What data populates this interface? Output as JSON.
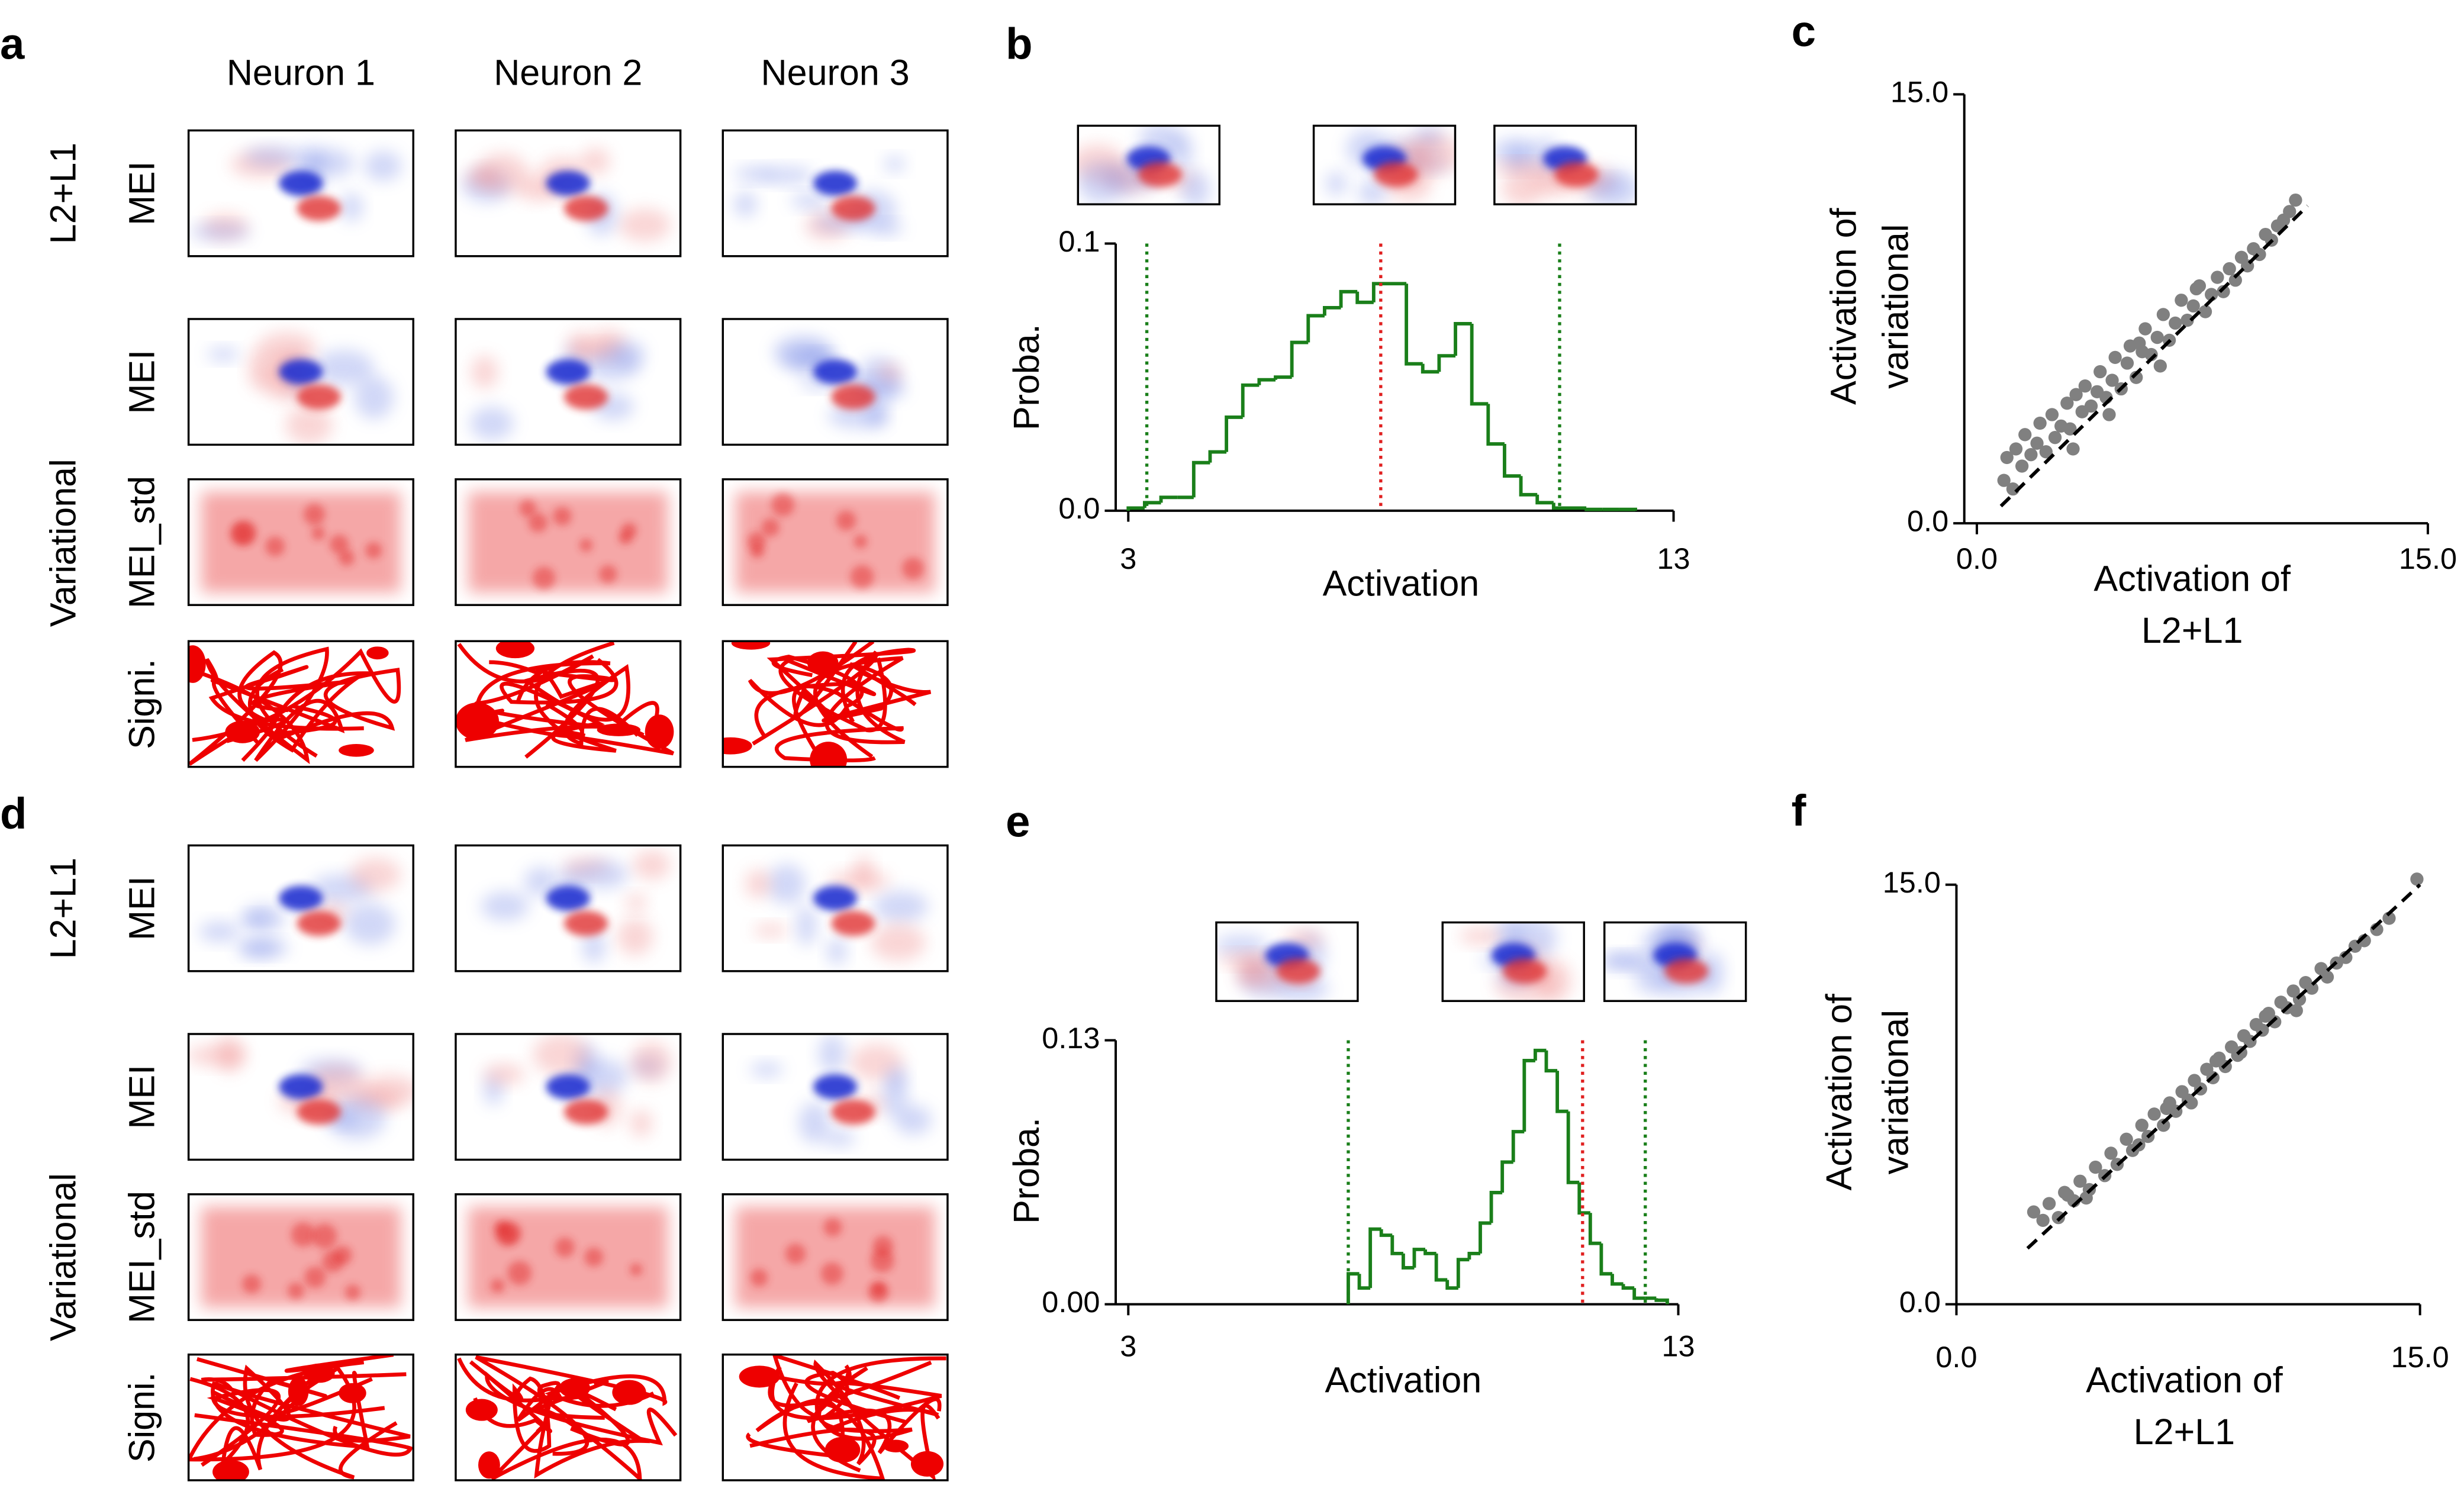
{
  "panel_labels": [
    "a",
    "b",
    "c",
    "d",
    "e",
    "f"
  ],
  "image_grids": [
    {
      "columns": [
        "Neuron 1",
        "Neuron 2",
        "Neuron 3"
      ],
      "groups": [
        "L2+L1",
        "Variational"
      ],
      "rows": [
        "MEI",
        "MEI",
        "MEI_std",
        "Signi."
      ]
    },
    {
      "groups": [
        "L2+L1",
        "Variational"
      ],
      "rows": [
        "MEI",
        "MEI",
        "MEI_std",
        "Signi."
      ]
    }
  ],
  "chart_data": [
    {
      "type": "histogram",
      "xlabel": "Activation",
      "ylabel": "Proba.",
      "color": "#1a7f1a",
      "bins": [
        3.0,
        3.3,
        3.6,
        3.9,
        4.2,
        4.5,
        4.8,
        5.1,
        5.4,
        5.7,
        6.0,
        6.3,
        6.6,
        6.9,
        7.2,
        7.5,
        7.8,
        8.1,
        8.4,
        8.7,
        9.0,
        9.3,
        9.6,
        9.9,
        10.2,
        10.5,
        10.8,
        11.1,
        11.4,
        11.7,
        12.0,
        12.3
      ],
      "values": [
        0.001,
        0.003,
        0.005,
        0.005,
        0.018,
        0.022,
        0.035,
        0.047,
        0.049,
        0.05,
        0.063,
        0.073,
        0.076,
        0.082,
        0.078,
        0.085,
        0.085,
        0.055,
        0.052,
        0.058,
        0.07,
        0.04,
        0.025,
        0.013,
        0.006,
        0.003,
        0.001,
        0.001,
        0.0005,
        0.0005,
        0.0005
      ],
      "vlines": [
        {
          "value": 3.34,
          "color": "#1a7f1a"
        },
        {
          "value": 7.63,
          "color": "#e02020"
        },
        {
          "value": 10.91,
          "color": "#1a7f1a"
        }
      ],
      "xlim": [
        3,
        13
      ],
      "xticks": [
        3,
        13
      ],
      "ylim": [
        0,
        0.1
      ],
      "yticks": [
        {
          "value": 0,
          "label": "0.0"
        },
        0.1
      ]
    },
    {
      "type": "scatter",
      "xlabel": [
        "Activation of",
        "L2+L1"
      ],
      "ylabel": [
        "Activation of",
        "variational"
      ],
      "color": "#808080",
      "x": [
        0.9,
        1.0,
        1.2,
        1.3,
        1.5,
        1.6,
        1.8,
        2.0,
        2.1,
        2.3,
        2.5,
        2.6,
        2.8,
        3.0,
        3.1,
        3.3,
        3.5,
        3.6,
        3.8,
        4.0,
        4.1,
        4.3,
        4.5,
        4.6,
        4.8,
        5.0,
        5.1,
        5.3,
        5.5,
        5.6,
        5.8,
        6.0,
        6.2,
        6.4,
        6.6,
        6.8,
        7.0,
        7.2,
        7.4,
        7.6,
        7.8,
        8.0,
        8.2,
        8.4,
        8.6,
        8.8,
        9.0,
        9.2,
        9.4,
        9.6,
        9.8,
        10.0,
        10.2,
        10.4,
        10.6,
        3.2,
        4.4,
        5.4,
        6.1,
        7.3
      ],
      "y": [
        1.5,
        2.3,
        1.2,
        2.6,
        2.0,
        3.1,
        2.4,
        2.8,
        3.5,
        2.5,
        3.8,
        3.0,
        3.4,
        4.2,
        3.3,
        4.5,
        3.9,
        4.8,
        4.1,
        4.6,
        5.3,
        4.4,
        5.0,
        5.8,
        4.7,
        5.6,
        6.2,
        5.1,
        6.0,
        6.8,
        5.9,
        6.5,
        7.3,
        6.4,
        7.0,
        7.8,
        7.1,
        7.6,
        8.3,
        7.4,
        8.0,
        8.6,
        8.1,
        8.9,
        8.5,
        9.3,
        9.0,
        9.6,
        9.4,
        10.1,
        9.9,
        10.4,
        10.6,
        10.9,
        11.3,
        2.6,
        3.8,
        6.3,
        5.5,
        8.2
      ],
      "fit": {
        "x": [
          0.8,
          11.0
        ],
        "y": [
          0.6,
          11.1
        ]
      },
      "xlim": [
        0,
        15
      ],
      "xticks": [
        {
          "value": 0,
          "label": "0.0"
        },
        {
          "value": 15,
          "label": "15.0"
        }
      ],
      "ylim": [
        0,
        15
      ],
      "yticks": [
        {
          "value": 0,
          "label": "0.0"
        },
        {
          "value": 15,
          "label": "15.0"
        }
      ]
    },
    {
      "type": "histogram",
      "xlabel": "Activation",
      "ylabel": "Proba.",
      "color": "#1a7f1a",
      "bins": [
        7.0,
        7.2,
        7.4,
        7.6,
        7.8,
        8.0,
        8.2,
        8.4,
        8.6,
        8.8,
        9.0,
        9.2,
        9.4,
        9.6,
        9.8,
        10.0,
        10.2,
        10.4,
        10.6,
        10.8,
        11.0,
        11.2,
        11.4,
        11.6,
        11.8,
        12.0,
        12.2,
        12.4,
        12.6,
        12.8
      ],
      "values": [
        0.015,
        0.008,
        0.037,
        0.034,
        0.025,
        0.018,
        0.027,
        0.025,
        0.012,
        0.008,
        0.022,
        0.025,
        0.04,
        0.055,
        0.07,
        0.085,
        0.12,
        0.125,
        0.115,
        0.095,
        0.06,
        0.045,
        0.03,
        0.015,
        0.01,
        0.008,
        0.003,
        0.003,
        0.002
      ],
      "vlines": [
        {
          "value": 7.0,
          "color": "#1a7f1a"
        },
        {
          "value": 11.26,
          "color": "#e02020"
        },
        {
          "value": 12.4,
          "color": "#1a7f1a"
        }
      ],
      "xlim": [
        3,
        13
      ],
      "xticks": [
        3,
        13
      ],
      "ylim": [
        0,
        0.13
      ],
      "yticks": [
        {
          "value": 0,
          "label": "0.00"
        },
        0.13
      ]
    },
    {
      "type": "scatter",
      "xlabel": [
        "Activation of",
        "L2+L1"
      ],
      "ylabel": [
        "Activation of",
        "variational"
      ],
      "color": "#808080",
      "x": [
        2.5,
        2.8,
        3.0,
        3.3,
        3.5,
        3.8,
        4.0,
        4.3,
        4.5,
        4.8,
        5.0,
        5.2,
        5.5,
        5.7,
        6.0,
        6.2,
        6.4,
        6.7,
        6.9,
        7.1,
        7.3,
        7.5,
        7.7,
        7.9,
        8.1,
        8.3,
        8.5,
        8.7,
        8.9,
        9.1,
        9.3,
        9.5,
        9.7,
        9.9,
        10.1,
        10.3,
        10.5,
        10.7,
        10.9,
        11.1,
        11.3,
        11.5,
        11.8,
        12.0,
        12.3,
        12.6,
        12.9,
        13.2,
        13.6,
        14.0,
        14.9,
        4.2,
        5.9,
        6.8,
        7.6,
        8.4,
        9.2,
        10.0,
        11.0,
        3.6
      ],
      "y": [
        3.3,
        3.0,
        3.6,
        3.1,
        4.0,
        3.7,
        4.4,
        4.1,
        4.9,
        4.6,
        5.4,
        5.0,
        5.9,
        5.5,
        6.4,
        6.0,
        6.8,
        6.4,
        7.2,
        6.9,
        7.6,
        7.3,
        8.0,
        7.7,
        8.4,
        8.1,
        8.8,
        8.5,
        9.2,
        8.9,
        9.6,
        9.4,
        10.0,
        9.8,
        10.4,
        10.1,
        10.8,
        10.6,
        11.2,
        10.9,
        11.5,
        11.3,
        12.0,
        11.7,
        12.2,
        12.4,
        12.8,
        13.0,
        13.4,
        13.8,
        15.2,
        3.8,
        5.7,
        7.0,
        7.2,
        8.7,
        9.0,
        10.3,
        10.5,
        3.9
      ],
      "fit": {
        "x": [
          2.3,
          15.0
        ],
        "y": [
          2.0,
          15.0
        ]
      },
      "xlim": [
        0,
        15
      ],
      "xticks": [
        {
          "value": 0,
          "label": "0.0"
        },
        {
          "value": 15,
          "label": "15.0"
        }
      ],
      "ylim": [
        0,
        15
      ],
      "yticks": [
        {
          "value": 0,
          "label": "0.0"
        },
        {
          "value": 15,
          "label": "15.0"
        }
      ]
    }
  ]
}
